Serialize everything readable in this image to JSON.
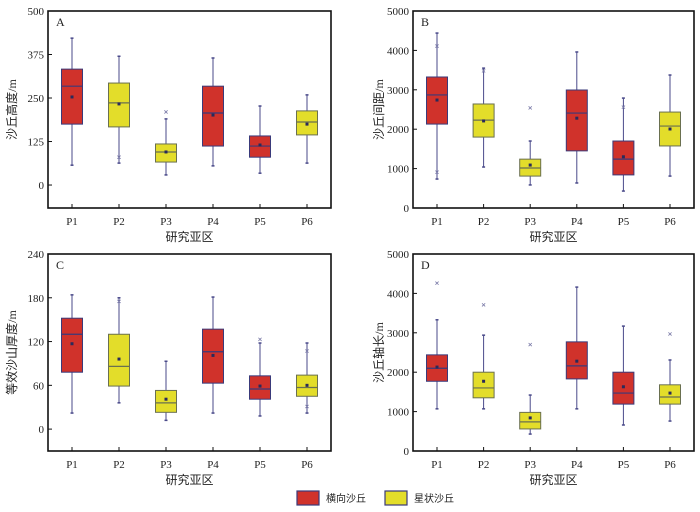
{
  "colors": {
    "transverse": "#d0322b",
    "star": "#e3dd2a",
    "box_stroke_transverse": "#3a3a7a",
    "box_stroke_star": "#6a7050",
    "whisker": "#4a4a8a",
    "frame": "#111111"
  },
  "legend": {
    "items": [
      {
        "label": "横向沙丘",
        "type": "transverse"
      },
      {
        "label": "星状沙丘",
        "type": "star"
      }
    ]
  },
  "chart_data": [
    {
      "type": "box",
      "panel": "A",
      "xlabel": "研究亚区",
      "ylabel": "沙丘高度/m",
      "ylim": [
        -66,
        500
      ],
      "yticks": [
        0,
        125,
        250,
        375,
        500
      ],
      "ytick_labels": [
        "0",
        "125",
        "250",
        "375",
        "500"
      ],
      "categories": [
        "P1",
        "P2",
        "P3",
        "P4",
        "P5",
        "P6"
      ],
      "series": [
        {
          "cat": "P1",
          "type": "transverse",
          "min": 57,
          "q1": 175,
          "median": 284,
          "q3": 333,
          "max": 422,
          "mean": 253,
          "outliers": []
        },
        {
          "cat": "P2",
          "type": "star",
          "min": 63,
          "q1": 167,
          "median": 236,
          "q3": 293,
          "max": 370,
          "mean": 233,
          "outliers": [
            80
          ]
        },
        {
          "cat": "P3",
          "type": "star",
          "min": 29,
          "q1": 66,
          "median": 95,
          "q3": 118,
          "max": 190,
          "mean": 95,
          "outliers": [
            210
          ]
        },
        {
          "cat": "P4",
          "type": "transverse",
          "min": 55,
          "q1": 112,
          "median": 207,
          "q3": 284,
          "max": 365,
          "mean": 201,
          "outliers": []
        },
        {
          "cat": "P5",
          "type": "transverse",
          "min": 34,
          "q1": 80,
          "median": 112,
          "q3": 141,
          "max": 227,
          "mean": 115,
          "outliers": []
        },
        {
          "cat": "P6",
          "type": "star",
          "min": 63,
          "q1": 144,
          "median": 181,
          "q3": 213,
          "max": 259,
          "mean": 175,
          "outliers": []
        }
      ]
    },
    {
      "type": "box",
      "panel": "B",
      "xlabel": "研究亚区",
      "ylabel": "沙丘间距/m",
      "ylim": [
        0,
        5000
      ],
      "yticks": [
        0,
        1000,
        2000,
        3000,
        4000,
        5000
      ],
      "ytick_labels": [
        "0",
        "1000",
        "2000",
        "3000",
        "4000",
        "5000"
      ],
      "categories": [
        "P1",
        "P2",
        "P3",
        "P4",
        "P5",
        "P6"
      ],
      "series": [
        {
          "cat": "P1",
          "type": "transverse",
          "min": 735,
          "q1": 2130,
          "median": 2870,
          "q3": 3325,
          "max": 4440,
          "mean": 2740,
          "outliers": [
            4110,
            910
          ]
        },
        {
          "cat": "P2",
          "type": "star",
          "min": 1040,
          "q1": 1800,
          "median": 2230,
          "q3": 2640,
          "max": 3550,
          "mean": 2210,
          "outliers": [
            3480
          ]
        },
        {
          "cat": "P3",
          "type": "star",
          "min": 585,
          "q1": 810,
          "median": 1015,
          "q3": 1240,
          "max": 1700,
          "mean": 1090,
          "outliers": [
            2540
          ]
        },
        {
          "cat": "P4",
          "type": "transverse",
          "min": 635,
          "q1": 1450,
          "median": 2410,
          "q3": 2995,
          "max": 3960,
          "mean": 2280,
          "outliers": []
        },
        {
          "cat": "P5",
          "type": "transverse",
          "min": 430,
          "q1": 840,
          "median": 1240,
          "q3": 1700,
          "max": 2790,
          "mean": 1300,
          "outliers": [
            2560
          ]
        },
        {
          "cat": "P6",
          "type": "star",
          "min": 810,
          "q1": 1575,
          "median": 2080,
          "q3": 2435,
          "max": 3375,
          "mean": 2005,
          "outliers": []
        }
      ]
    },
    {
      "type": "box",
      "panel": "C",
      "xlabel": "研究亚区",
      "ylabel": "等效沙山厚度/m",
      "ylim": [
        -30,
        240
      ],
      "yticks": [
        0,
        60,
        120,
        180,
        240
      ],
      "ytick_labels": [
        "0",
        "60",
        "120",
        "180",
        "240"
      ],
      "categories": [
        "P1",
        "P2",
        "P3",
        "P4",
        "P5",
        "P6"
      ],
      "series": [
        {
          "cat": "P1",
          "type": "transverse",
          "min": 22,
          "q1": 78,
          "median": 130,
          "q3": 152,
          "max": 184,
          "mean": 117,
          "outliers": []
        },
        {
          "cat": "P2",
          "type": "star",
          "min": 36,
          "q1": 59,
          "median": 86,
          "q3": 130,
          "max": 180,
          "mean": 96,
          "outliers": [
            175
          ]
        },
        {
          "cat": "P3",
          "type": "star",
          "min": 12,
          "q1": 23,
          "median": 36,
          "q3": 53,
          "max": 93,
          "mean": 41,
          "outliers": []
        },
        {
          "cat": "P4",
          "type": "transverse",
          "min": 22,
          "q1": 63,
          "median": 106,
          "q3": 137,
          "max": 181,
          "mean": 101,
          "outliers": []
        },
        {
          "cat": "P5",
          "type": "transverse",
          "min": 18,
          "q1": 41,
          "median": 55,
          "q3": 73,
          "max": 118,
          "mean": 59,
          "outliers": [
            123
          ]
        },
        {
          "cat": "P6",
          "type": "star",
          "min": 22,
          "q1": 45,
          "median": 57,
          "q3": 74,
          "max": 118,
          "mean": 60,
          "outliers": [
            107,
            31
          ]
        }
      ]
    },
    {
      "type": "box",
      "panel": "D",
      "xlabel": "研究亚区",
      "ylabel": "沙丘轴长/m",
      "ylim": [
        0,
        5000
      ],
      "yticks": [
        0,
        1000,
        2000,
        3000,
        4000,
        5000
      ],
      "ytick_labels": [
        "0",
        "1000",
        "2000",
        "3000",
        "4000",
        "5000"
      ],
      "categories": [
        "P1",
        "P2",
        "P3",
        "P4",
        "P5",
        "P6"
      ],
      "series": [
        {
          "cat": "P1",
          "type": "transverse",
          "min": 1070,
          "q1": 1770,
          "median": 2100,
          "q3": 2440,
          "max": 3330,
          "mean": 2130,
          "outliers": [
            4260
          ]
        },
        {
          "cat": "P2",
          "type": "star",
          "min": 1070,
          "q1": 1350,
          "median": 1600,
          "q3": 2000,
          "max": 2940,
          "mean": 1770,
          "outliers": [
            3710
          ]
        },
        {
          "cat": "P3",
          "type": "star",
          "min": 430,
          "q1": 560,
          "median": 740,
          "q3": 980,
          "max": 1420,
          "mean": 840,
          "outliers": [
            2700
          ]
        },
        {
          "cat": "P4",
          "type": "transverse",
          "min": 1070,
          "q1": 1830,
          "median": 2160,
          "q3": 2770,
          "max": 4160,
          "mean": 2280,
          "outliers": []
        },
        {
          "cat": "P5",
          "type": "transverse",
          "min": 660,
          "q1": 1190,
          "median": 1470,
          "q3": 2000,
          "max": 3170,
          "mean": 1630,
          "outliers": []
        },
        {
          "cat": "P6",
          "type": "star",
          "min": 760,
          "q1": 1190,
          "median": 1370,
          "q3": 1680,
          "max": 2310,
          "mean": 1470,
          "outliers": [
            2970
          ]
        }
      ]
    }
  ]
}
